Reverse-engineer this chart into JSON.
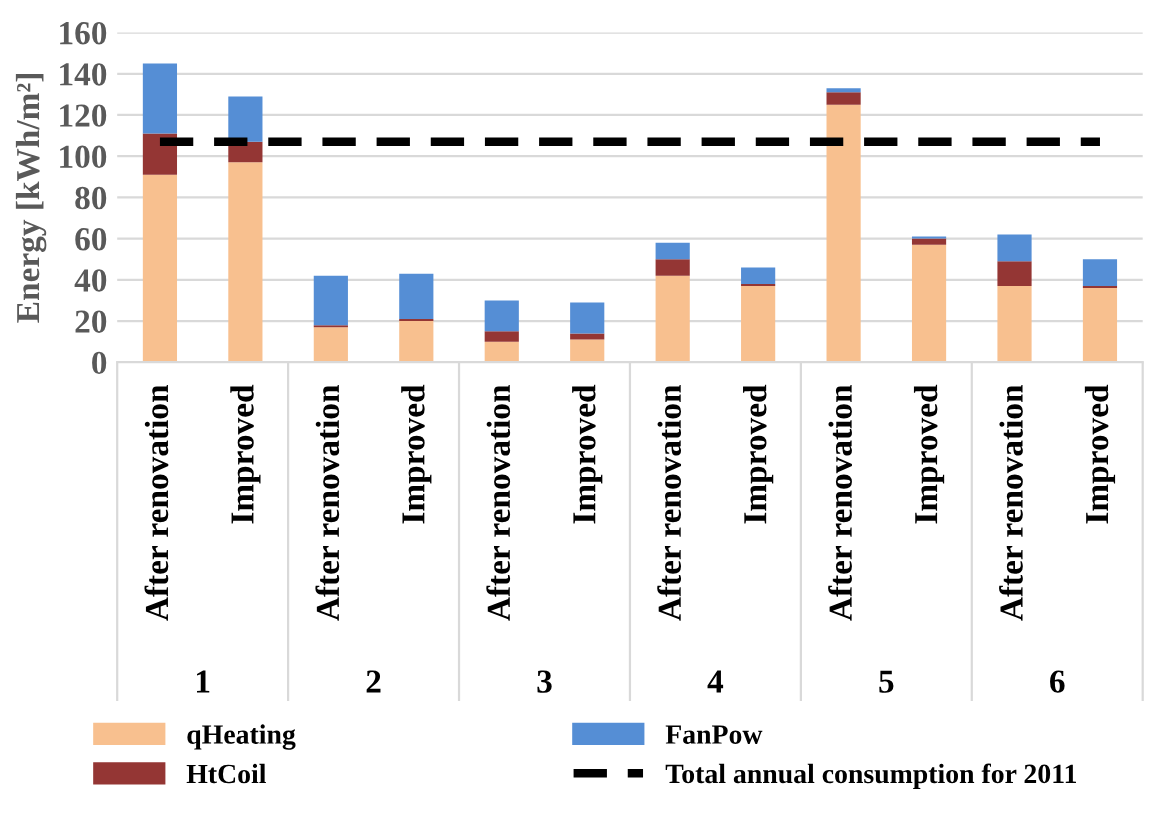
{
  "chart_data": {
    "type": "bar",
    "stacked": true,
    "ylabel": "Energy [kWh/m²]",
    "categories": [
      "After renovation",
      "Improved",
      "After renovation",
      "Improved",
      "After renovation",
      "Improved",
      "After renovation",
      "Improved",
      "After renovation",
      "Improved",
      "After renovation",
      "Improved"
    ],
    "series": [
      {
        "name": "qHeating",
        "color": "#f8c08f",
        "values": [
          91,
          97,
          17,
          20,
          10,
          11,
          42,
          37,
          125,
          57,
          37,
          36
        ]
      },
      {
        "name": "HtCoil",
        "color": "#943634",
        "values": [
          20,
          10,
          1,
          1,
          5,
          3,
          8,
          1,
          6,
          3,
          12,
          1
        ]
      },
      {
        "name": "FanPow",
        "color": "#558ed5",
        "values": [
          34,
          22,
          24,
          22,
          15,
          15,
          8,
          8,
          2,
          1,
          13,
          13
        ]
      }
    ],
    "ref_lines": [
      {
        "axis": "y",
        "value": 107,
        "label": "Total annual consumption for 2011",
        "color": "#000000",
        "line_style": "dashed"
      }
    ],
    "annotations": [
      "1",
      "2",
      "3",
      "4",
      "5",
      "6"
    ],
    "ylim": [
      0,
      160
    ],
    "yticks": [
      0,
      20,
      40,
      60,
      80,
      100,
      120,
      140,
      160
    ],
    "grid": "y",
    "legend": "bottom"
  }
}
